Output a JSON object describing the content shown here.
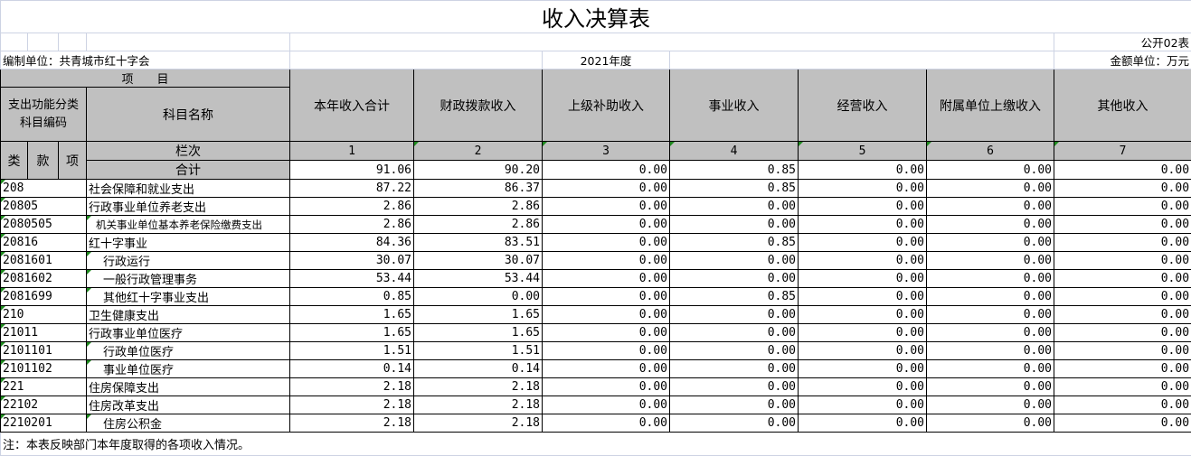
{
  "title": "收入决算表",
  "form_no": "公开02表",
  "unit": "编制单位：共青城市红十字会",
  "year": "2021年度",
  "currency": "金额单位：万元",
  "header": {
    "item": "项　　目",
    "code_group": "支出功能分类科目编码",
    "name": "科目名称",
    "lei": "类",
    "kuan": "款",
    "xiang": "项",
    "lanci": "栏次",
    "total": "合计",
    "columns": [
      "本年收入合计",
      "财政拨款收入",
      "上级补助收入",
      "事业收入",
      "经营收入",
      "附属单位上缴收入",
      "其他收入"
    ],
    "column_nos": [
      "1",
      "2",
      "3",
      "4",
      "5",
      "6",
      "7"
    ]
  },
  "total_values": [
    "91.06",
    "90.20",
    "0.00",
    "0.85",
    "0.00",
    "0.00",
    "0.00"
  ],
  "rows": [
    {
      "code": "208",
      "name": "社会保障和就业支出",
      "level": 0,
      "values": [
        "87.22",
        "86.37",
        "0.00",
        "0.85",
        "0.00",
        "0.00",
        "0.00"
      ]
    },
    {
      "code": "20805",
      "name": "行政事业单位养老支出",
      "level": 0,
      "values": [
        "2.86",
        "2.86",
        "0.00",
        "0.00",
        "0.00",
        "0.00",
        "0.00"
      ]
    },
    {
      "code": "2080505",
      "name": "机关事业单位基本养老保险缴费支出",
      "level": 1,
      "values": [
        "2.86",
        "2.86",
        "0.00",
        "0.00",
        "0.00",
        "0.00",
        "0.00"
      ]
    },
    {
      "code": "20816",
      "name": "红十字事业",
      "level": 0,
      "values": [
        "84.36",
        "83.51",
        "0.00",
        "0.85",
        "0.00",
        "0.00",
        "0.00"
      ]
    },
    {
      "code": "2081601",
      "name": "行政运行",
      "level": 2,
      "values": [
        "30.07",
        "30.07",
        "0.00",
        "0.00",
        "0.00",
        "0.00",
        "0.00"
      ]
    },
    {
      "code": "2081602",
      "name": "一般行政管理事务",
      "level": 2,
      "values": [
        "53.44",
        "53.44",
        "0.00",
        "0.00",
        "0.00",
        "0.00",
        "0.00"
      ]
    },
    {
      "code": "2081699",
      "name": "其他红十字事业支出",
      "level": 2,
      "values": [
        "0.85",
        "0.00",
        "0.00",
        "0.85",
        "0.00",
        "0.00",
        "0.00"
      ]
    },
    {
      "code": "210",
      "name": "卫生健康支出",
      "level": 0,
      "values": [
        "1.65",
        "1.65",
        "0.00",
        "0.00",
        "0.00",
        "0.00",
        "0.00"
      ]
    },
    {
      "code": "21011",
      "name": "行政事业单位医疗",
      "level": 0,
      "values": [
        "1.65",
        "1.65",
        "0.00",
        "0.00",
        "0.00",
        "0.00",
        "0.00"
      ]
    },
    {
      "code": "2101101",
      "name": "行政单位医疗",
      "level": 2,
      "values": [
        "1.51",
        "1.51",
        "0.00",
        "0.00",
        "0.00",
        "0.00",
        "0.00"
      ]
    },
    {
      "code": "2101102",
      "name": "事业单位医疗",
      "level": 2,
      "values": [
        "0.14",
        "0.14",
        "0.00",
        "0.00",
        "0.00",
        "0.00",
        "0.00"
      ]
    },
    {
      "code": "221",
      "name": "住房保障支出",
      "level": 0,
      "values": [
        "2.18",
        "2.18",
        "0.00",
        "0.00",
        "0.00",
        "0.00",
        "0.00"
      ]
    },
    {
      "code": "22102",
      "name": "住房改革支出",
      "level": 0,
      "values": [
        "2.18",
        "2.18",
        "0.00",
        "0.00",
        "0.00",
        "0.00",
        "0.00"
      ]
    },
    {
      "code": "2210201",
      "name": "住房公积金",
      "level": 2,
      "values": [
        "2.18",
        "2.18",
        "0.00",
        "0.00",
        "0.00",
        "0.00",
        "0.00"
      ]
    }
  ],
  "note": "注：本表反映部门本年度取得的各项收入情况。"
}
